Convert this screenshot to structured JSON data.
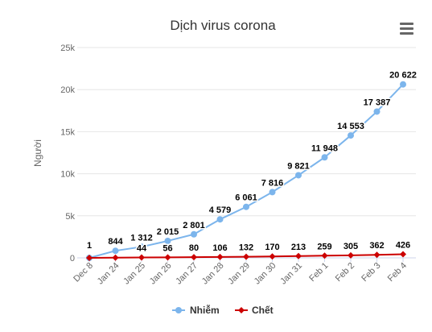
{
  "chart_data": {
    "type": "line",
    "title": "Dịch virus corona",
    "ylabel": "Người",
    "xlabel": "",
    "ylim": [
      0,
      25000
    ],
    "yticks": [
      "0",
      "5k",
      "10k",
      "15k",
      "20k",
      "25k"
    ],
    "ytick_values": [
      0,
      5000,
      10000,
      15000,
      20000,
      25000
    ],
    "categories": [
      "Dec 8",
      "Jan 24",
      "Jan 25",
      "Jan 26",
      "Jan 27",
      "Jan 28",
      "Jan 29",
      "Jan 30",
      "Jan 31",
      "Feb 1",
      "Feb 2",
      "Feb 3",
      "Feb 4"
    ],
    "grid": true,
    "legend_position": "bottom-center",
    "series": [
      {
        "name": "Nhiễm",
        "color": "#7cb5ec",
        "marker": "circle",
        "values": [
          1,
          844,
          1312,
          2015,
          2801,
          4579,
          6061,
          7816,
          9821,
          11948,
          14553,
          17387,
          20622
        ],
        "labels": [
          "1",
          "844",
          "1 312",
          "2 015",
          "2 801",
          "4 579",
          "6 061",
          "7 816",
          "9 821",
          "11 948",
          "14 553",
          "17 387",
          "20 622"
        ]
      },
      {
        "name": "Chết",
        "color": "#cc0000",
        "marker": "diamond",
        "values": [
          0,
          25,
          44,
          56,
          80,
          106,
          132,
          170,
          213,
          259,
          305,
          362,
          426
        ],
        "labels": [
          "",
          "",
          "44",
          "56",
          "80",
          "106",
          "132",
          "170",
          "213",
          "259",
          "305",
          "362",
          "426"
        ]
      }
    ]
  },
  "menu": {
    "icon": "hamburger-menu-icon"
  }
}
